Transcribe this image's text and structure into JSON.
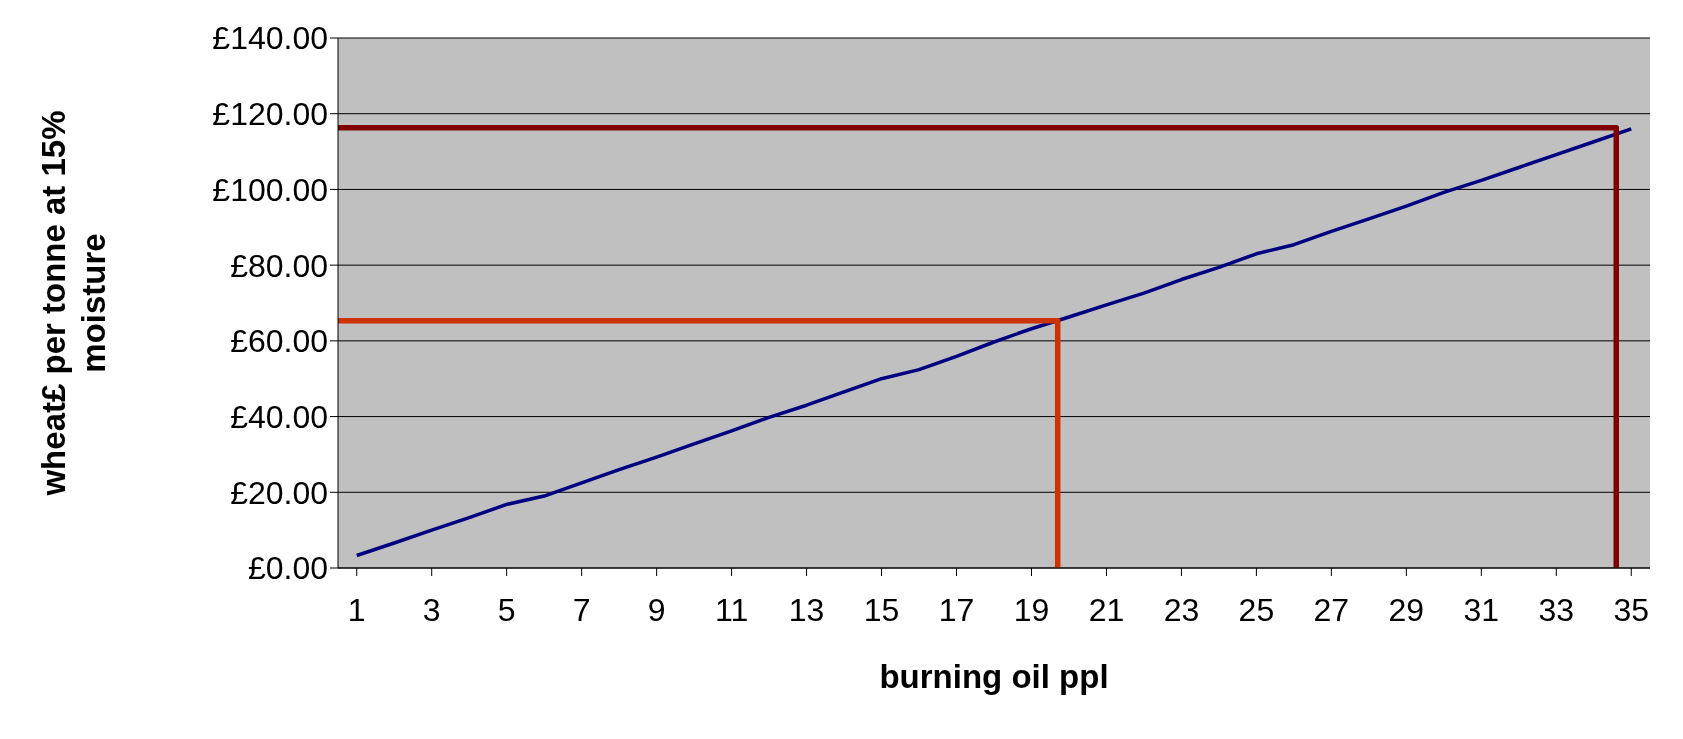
{
  "chart_data": {
    "type": "line",
    "xlabel": "burning oil ppl",
    "ylabel": "wheat£ per tonne at 15% moisture",
    "x": [
      1,
      2,
      3,
      4,
      5,
      6,
      7,
      8,
      9,
      10,
      11,
      12,
      13,
      14,
      15,
      16,
      17,
      18,
      19,
      20,
      21,
      22,
      23,
      24,
      25,
      26,
      27,
      28,
      29,
      30,
      31,
      32,
      33,
      34,
      35
    ],
    "xlim": [
      0.5,
      35.5
    ],
    "xticks": [
      1,
      3,
      5,
      7,
      9,
      11,
      13,
      15,
      17,
      19,
      21,
      23,
      25,
      27,
      29,
      31,
      33,
      35
    ],
    "ylim": [
      0,
      140
    ],
    "yticks": [
      {
        "value": 0,
        "label": "£0.00"
      },
      {
        "value": 20,
        "label": "£20.00"
      },
      {
        "value": 40,
        "label": "£40.00"
      },
      {
        "value": 60,
        "label": "£60.00"
      },
      {
        "value": 80,
        "label": "£80.00"
      },
      {
        "value": 100,
        "label": "£100.00"
      },
      {
        "value": 120,
        "label": "£120.00"
      },
      {
        "value": 140,
        "label": "£140.00"
      }
    ],
    "grid": "y",
    "marker": "none",
    "line_style": "solid",
    "series": [
      {
        "color": "#000080",
        "values": [
          3.3,
          6.6,
          10,
          13.3,
          16.8,
          19,
          22.5,
          26,
          29.3,
          32.8,
          36.2,
          39.8,
          43,
          46.5,
          50,
          52.4,
          55.9,
          59.7,
          63.2,
          66.3,
          69.5,
          72.6,
          76.2,
          79.4,
          83,
          85.4,
          88.9,
          92.2,
          95.6,
          99.2,
          102.4,
          105.8,
          109.2,
          112.6,
          116
        ]
      },
      {
        "type": "line",
        "color": "#cc3300",
        "x": [
          0.5,
          19.7,
          19.7
        ],
        "values": [
          65.3,
          65.3,
          0
        ]
      },
      {
        "type": "line",
        "color": "#800000",
        "x": [
          0.5,
          34.6,
          34.6
        ],
        "values": [
          116.3,
          116.3,
          0
        ]
      }
    ]
  }
}
